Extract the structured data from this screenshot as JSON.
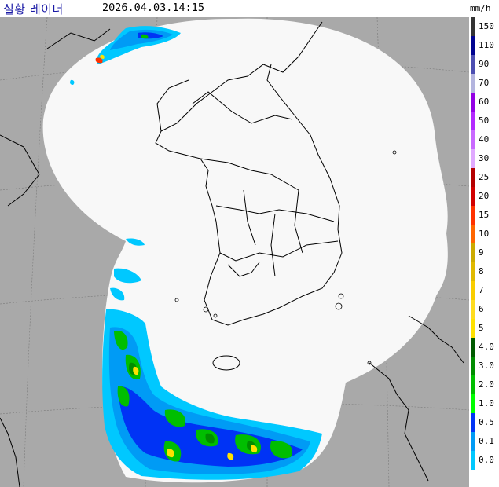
{
  "header": {
    "title": "실황 레이더",
    "timestamp": "2026.04.03.14:15",
    "unit": "mm/h"
  },
  "legend": {
    "levels": [
      {
        "label": "150",
        "color": "#333333"
      },
      {
        "label": "110",
        "color": "#000390"
      },
      {
        "label": "90",
        "color": "#4c4eb1"
      },
      {
        "label": "70",
        "color": "#b3b4de"
      },
      {
        "label": "60",
        "color": "#9300e4"
      },
      {
        "label": "50",
        "color": "#b329ff"
      },
      {
        "label": "40",
        "color": "#c969ff"
      },
      {
        "label": "30",
        "color": "#e0a9ff"
      },
      {
        "label": "25",
        "color": "#b40000"
      },
      {
        "label": "20",
        "color": "#d20000"
      },
      {
        "label": "15",
        "color": "#ff3200"
      },
      {
        "label": "10",
        "color": "#ff6600"
      },
      {
        "label": "9",
        "color": "#ccaa00"
      },
      {
        "label": "8",
        "color": "#e0b900"
      },
      {
        "label": "7",
        "color": "#f9cd00"
      },
      {
        "label": "6",
        "color": "#ffdc1f"
      },
      {
        "label": "5",
        "color": "#ffe100"
      },
      {
        "label": "4.0",
        "color": "#005a00"
      },
      {
        "label": "3.0",
        "color": "#008c00"
      },
      {
        "label": "2.0",
        "color": "#00be00"
      },
      {
        "label": "1.0",
        "color": "#00ff00"
      },
      {
        "label": "0.5",
        "color": "#0033f5"
      },
      {
        "label": "0.1",
        "color": "#009bf5"
      },
      {
        "label": "0.0",
        "color": "#00c8ff"
      }
    ]
  },
  "colors": {
    "outside_coverage": "#a9a9a9",
    "inside_coverage": "#f8f8f8",
    "coastline": "#000000",
    "light_rain": "#00c8ff",
    "moderate_rain": "#009bf5",
    "rain_blue": "#0033f5",
    "green_rain": "#00be00",
    "yellow_rain": "#ffe100",
    "red_rain": "#ff3200"
  }
}
